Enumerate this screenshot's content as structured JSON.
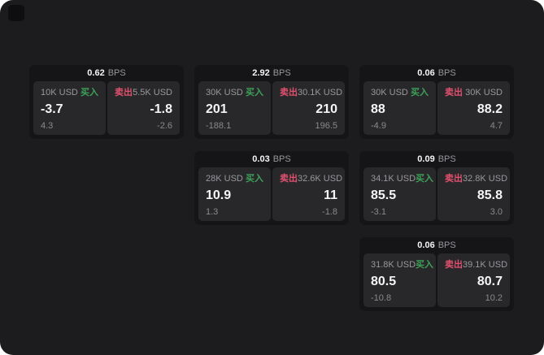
{
  "colors": {
    "background": "#1c1c1e",
    "menu_button": "#0e0e10",
    "card_background": "#151517",
    "panel_background": "#28282a",
    "text_primary": "#f5f5f7",
    "text_secondary": "#98989d",
    "text_muted": "#8a8a8e",
    "buy_green": "#3ea15a",
    "sell_red": "#e0506f"
  },
  "labels": {
    "buy": "买入",
    "sell": "卖出",
    "bps_unit": "BPS"
  },
  "cards": [
    {
      "col": 1,
      "row": 1,
      "bps": "0.62",
      "buy": {
        "amount": "10K USD",
        "price": "-3.7",
        "change": "4.3"
      },
      "sell": {
        "amount": "5.5K USD",
        "price": "-1.8",
        "change": "-2.6"
      }
    },
    {
      "col": 2,
      "row": 1,
      "bps": "2.92",
      "buy": {
        "amount": "30K USD",
        "price": "201",
        "change": "-188.1"
      },
      "sell": {
        "amount": "30.1K USD",
        "price": "210",
        "change": "196.5"
      }
    },
    {
      "col": 3,
      "row": 1,
      "bps": "0.06",
      "buy": {
        "amount": "30K USD",
        "price": "88",
        "change": "-4.9"
      },
      "sell": {
        "amount": "30K USD",
        "price": "88.2",
        "change": "4.7"
      }
    },
    {
      "col": 2,
      "row": 2,
      "bps": "0.03",
      "buy": {
        "amount": "28K USD",
        "price": "10.9",
        "change": "1.3"
      },
      "sell": {
        "amount": "32.6K USD",
        "price": "11",
        "change": "-1.8"
      }
    },
    {
      "col": 3,
      "row": 2,
      "bps": "0.09",
      "buy": {
        "amount": "34.1K USD",
        "price": "85.5",
        "change": "-3.1"
      },
      "sell": {
        "amount": "32.8K USD",
        "price": "85.8",
        "change": "3.0"
      }
    },
    {
      "col": 3,
      "row": 3,
      "bps": "0.06",
      "buy": {
        "amount": "31.8K USD",
        "price": "80.5",
        "change": "-10.8"
      },
      "sell": {
        "amount": "39.1K USD",
        "price": "80.7",
        "change": "10.2"
      }
    }
  ]
}
